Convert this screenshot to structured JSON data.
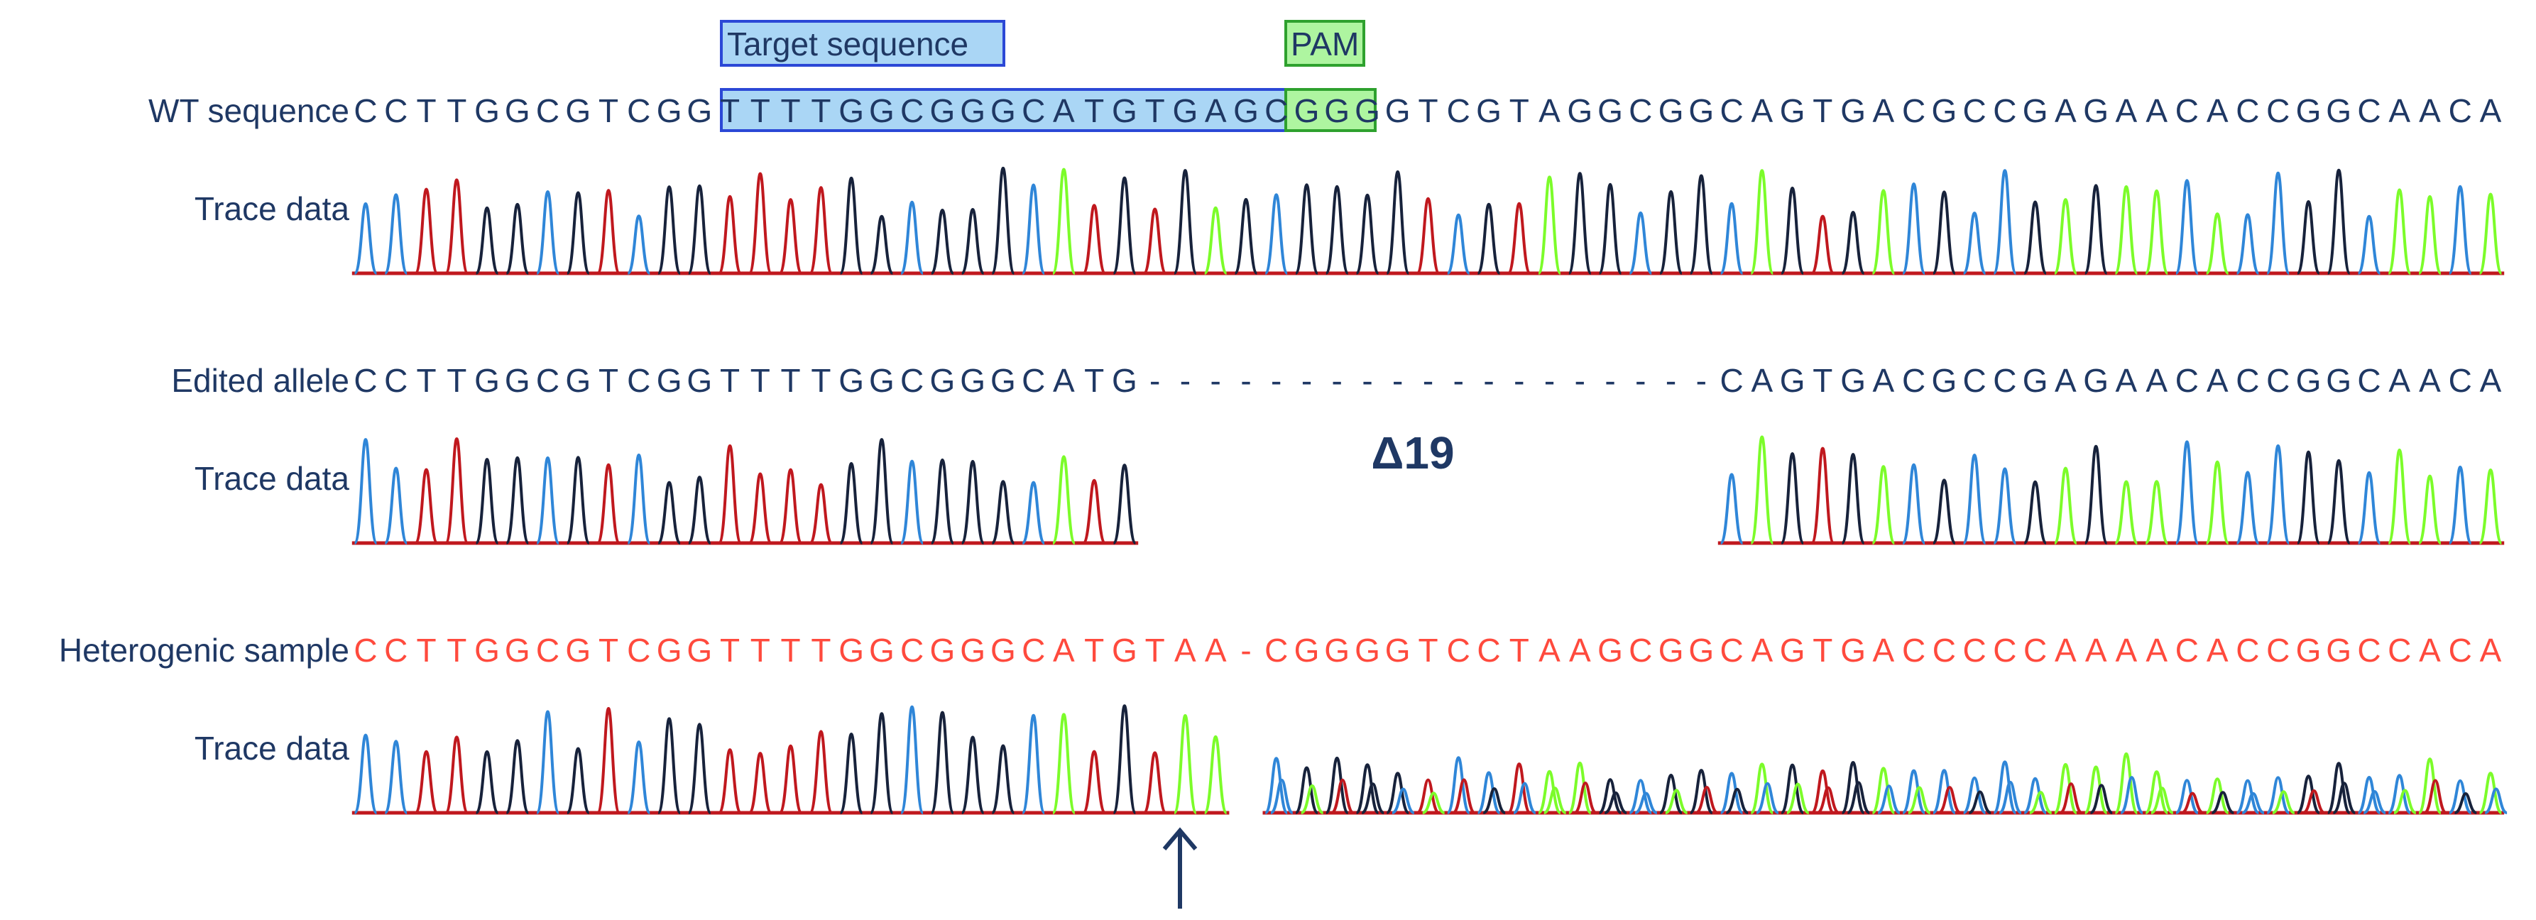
{
  "colors": {
    "A": "#7cfc2a",
    "C": "#2f86d8",
    "G": "#17223b",
    "T": "#c0181e",
    "baseline": "#c0181e",
    "text": "#1f3864",
    "hetero_text": "#ff4a3d",
    "target_box_fill": "#aad6f5",
    "target_box_stroke": "#2b48d6",
    "pam_box_fill": "#aef5a0",
    "pam_box_stroke": "#2ea12e"
  },
  "annotations": {
    "target_label": "Target sequence",
    "pam_label": "PAM",
    "deletion_label": "Δ19",
    "cut_site_icon": "up-arrow-icon"
  },
  "rows": [
    {
      "id": "wt",
      "label": "WT sequence",
      "trace_label": "Trace data",
      "style": "normal",
      "sequence": "CCTTGGCGTCGGTTTTGGCGGGCATGTGAGCGGGGTCGTAGGCGGCAGTGACGCCGAGAACACCGGCAACA"
    },
    {
      "id": "edited",
      "label": "Edited allele",
      "trace_label": "Trace data",
      "style": "normal",
      "sequence": "CCTTGGCGTCGGTTTTGGCGGGCATG-------------------CAGTGACGCCGAGAACACCGGCAACA"
    },
    {
      "id": "hetero",
      "label": "Heterogenic sample",
      "trace_label": "Trace data",
      "style": "hetero",
      "sequence": "CCTTGGCGTCGGTTTTGGCGGGCATGTAA-CGGGGTCCTAAGCGGCAGTGACCCCCAAAACACCGGCCACA"
    }
  ]
}
